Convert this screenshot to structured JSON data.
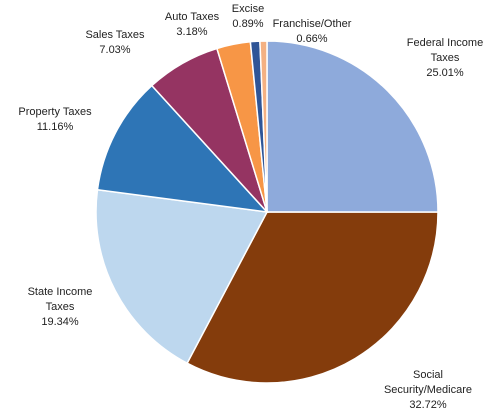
{
  "chart_data": {
    "type": "pie",
    "categories": [
      "Federal Income Taxes",
      "Social Security/Medicare",
      "State Income Taxes",
      "Property Taxes",
      "Sales Taxes",
      "Auto Taxes",
      "Excise",
      "Franchise/Other"
    ],
    "values": [
      25.01,
      32.72,
      19.34,
      11.16,
      7.03,
      3.18,
      0.89,
      0.66
    ],
    "value_labels": [
      "25.01%",
      "32.72%",
      "19.34%",
      "11.16%",
      "7.03%",
      "3.18%",
      "0.89%",
      "0.66%"
    ],
    "colors": [
      "#8eaadb",
      "#843c0c",
      "#bdd7ee",
      "#2e75b6",
      "#953462",
      "#f79646",
      "#2f5597",
      "#f4b183"
    ]
  }
}
